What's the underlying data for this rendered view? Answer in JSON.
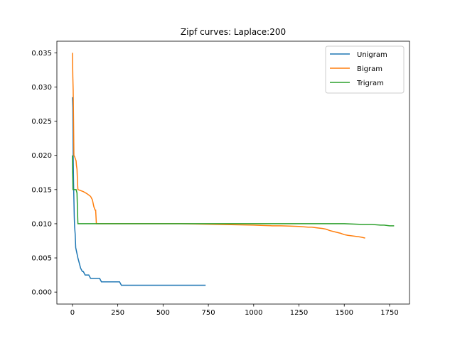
{
  "chart_data": {
    "type": "line",
    "title": "Zipf curves: Laplace:200",
    "xlabel": "",
    "ylabel": "",
    "xlim": [
      -86,
      1860
    ],
    "ylim": [
      -0.00175,
      0.0367
    ],
    "xticks": [
      0,
      250,
      500,
      750,
      1000,
      1250,
      1500,
      1750
    ],
    "xtick_labels": [
      "0",
      "250",
      "500",
      "750",
      "1000",
      "1250",
      "1500",
      "1750"
    ],
    "yticks": [
      0.0,
      0.005,
      0.01,
      0.015,
      0.02,
      0.025,
      0.03,
      0.035
    ],
    "ytick_labels": [
      "0.000",
      "0.005",
      "0.010",
      "0.015",
      "0.020",
      "0.025",
      "0.030",
      "0.035"
    ],
    "grid": false,
    "legend_position": "top-right",
    "series": [
      {
        "name": "Unigram",
        "color": "#1f77b4",
        "x": [
          0,
          2,
          3,
          4,
          6,
          8,
          10,
          12,
          15,
          18,
          22,
          26,
          30,
          35,
          40,
          45,
          55,
          60,
          70,
          80,
          90,
          100,
          110,
          150,
          160,
          260,
          270,
          735
        ],
        "y": [
          0.0285,
          0.027,
          0.024,
          0.02,
          0.016,
          0.0135,
          0.011,
          0.0095,
          0.0085,
          0.0065,
          0.006,
          0.0055,
          0.005,
          0.0045,
          0.004,
          0.0035,
          0.003,
          0.003,
          0.0025,
          0.0025,
          0.0025,
          0.002,
          0.002,
          0.002,
          0.0015,
          0.0015,
          0.001,
          0.001
        ]
      },
      {
        "name": "Bigram",
        "color": "#ff7f0e",
        "x": [
          0,
          2,
          4,
          6,
          8,
          12,
          16,
          20,
          22,
          25,
          28,
          30,
          40,
          60,
          80,
          100,
          110,
          118,
          125,
          128,
          132,
          140,
          200,
          600,
          800,
          900,
          1000,
          1050,
          1100,
          1150,
          1200,
          1250,
          1300,
          1320,
          1350,
          1380,
          1400,
          1420,
          1450,
          1480,
          1500,
          1520,
          1550,
          1580,
          1600,
          1615
        ],
        "y": [
          0.035,
          0.0315,
          0.0295,
          0.025,
          0.02,
          0.0198,
          0.0195,
          0.0192,
          0.0185,
          0.018,
          0.016,
          0.015,
          0.0149,
          0.0147,
          0.0144,
          0.014,
          0.0135,
          0.0125,
          0.012,
          0.012,
          0.01,
          0.01,
          0.01,
          0.01,
          0.0099,
          0.00985,
          0.0098,
          0.00975,
          0.0097,
          0.0097,
          0.00965,
          0.0096,
          0.0095,
          0.0095,
          0.0094,
          0.0093,
          0.0092,
          0.009,
          0.0088,
          0.0086,
          0.0084,
          0.0083,
          0.0082,
          0.0081,
          0.008,
          0.0079
        ]
      },
      {
        "name": "Trigram",
        "color": "#2ca02c",
        "x": [
          0,
          1,
          2,
          3,
          4,
          6,
          10,
          15,
          20,
          25,
          30,
          500,
          1000,
          1500,
          1600,
          1650,
          1700,
          1720,
          1750,
          1775
        ],
        "y": [
          0.02,
          0.0175,
          0.0165,
          0.015,
          0.015,
          0.015,
          0.015,
          0.015,
          0.015,
          0.0145,
          0.01,
          0.01,
          0.01,
          0.01,
          0.0099,
          0.0099,
          0.0098,
          0.0098,
          0.0097,
          0.0097
        ]
      }
    ]
  }
}
